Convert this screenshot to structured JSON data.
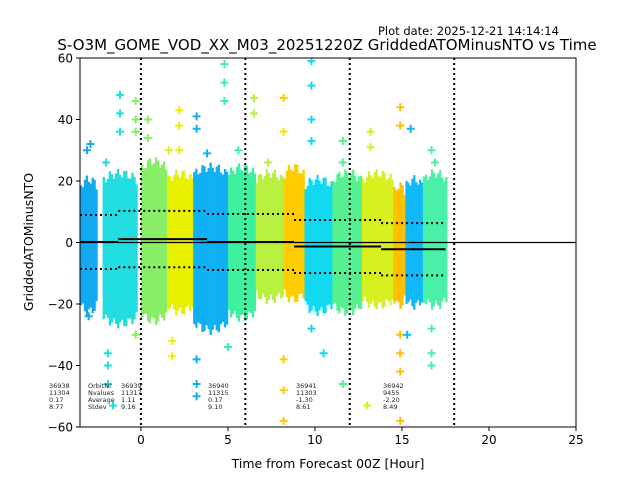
{
  "chart_data": {
    "type": "scatter",
    "title": "S-O3M_GOME_VOD_XX_M03_20251220Z GriddedATOMinusNTO vs Time",
    "plot_date": "Plot date: 2025-12-21 14:14:14",
    "xlabel": "Time from Forecast 00Z [Hour]",
    "ylabel": "GriddedATOMinusNTO",
    "xlim": [
      -3.5,
      25
    ],
    "ylim": [
      -60,
      60
    ],
    "xticks": [
      0,
      5,
      10,
      15,
      20,
      25
    ],
    "yticks": [
      -60,
      -40,
      -20,
      0,
      20,
      40,
      60
    ],
    "vertical_dotted_lines_x": [
      0,
      6,
      12,
      18
    ],
    "zero_line_y": 0,
    "stat_labels": [
      "OrbitNr",
      "Nvalues",
      "Average",
      "Stdev"
    ],
    "orbits": [
      {
        "orbit": "36938",
        "nvalues": "11304",
        "average": "0.17",
        "stdev": "8.77",
        "x_start": -3.5,
        "x_end": -1.3,
        "mean": 0.17,
        "std": 8.77
      },
      {
        "orbit": "36939",
        "nvalues": "11317",
        "average": "1.11",
        "stdev": "9.16",
        "x_start": -1.3,
        "x_end": 3.8,
        "mean": 1.11,
        "std": 9.16
      },
      {
        "orbit": "36940",
        "nvalues": "11315",
        "average": "0.17",
        "stdev": "9.10",
        "x_start": 3.8,
        "x_end": 8.8,
        "mean": 0.17,
        "std": 9.1
      },
      {
        "orbit": "36941",
        "nvalues": "11303",
        "average": "-1.30",
        "stdev": "8.61",
        "x_start": 8.8,
        "x_end": 13.8,
        "mean": -1.3,
        "std": 8.61
      },
      {
        "orbit": "36942",
        "nvalues": "9455",
        "average": "-2.20",
        "stdev": "8.49",
        "x_start": 13.8,
        "x_end": 17.5,
        "mean": -2.2,
        "std": 8.49
      }
    ],
    "strips": [
      {
        "x0": -3.5,
        "x1": -2.5,
        "ymin": -24,
        "ymax": 22,
        "color": "#11a9f0"
      },
      {
        "x0": -2.2,
        "x1": -0.2,
        "ymin": -28,
        "ymax": 24,
        "color": "#22dde0"
      },
      {
        "x0": 0.0,
        "x1": 1.5,
        "ymin": -27,
        "ymax": 28,
        "color": "#88ee66"
      },
      {
        "x0": 1.5,
        "x1": 3.0,
        "ymin": -24,
        "ymax": 24,
        "color": "#e8f000"
      },
      {
        "x0": 3.0,
        "x1": 5.0,
        "ymin": -30,
        "ymax": 26,
        "color": "#10b0f5"
      },
      {
        "x0": 5.0,
        "x1": 6.6,
        "ymin": -26,
        "ymax": 26,
        "color": "#3ef0a0"
      },
      {
        "x0": 6.6,
        "x1": 8.2,
        "ymin": -20,
        "ymax": 24,
        "color": "#b8f040"
      },
      {
        "x0": 8.2,
        "x1": 9.4,
        "ymin": -20,
        "ymax": 26,
        "color": "#ffcc00"
      },
      {
        "x0": 9.4,
        "x1": 11.0,
        "ymin": -24,
        "ymax": 22,
        "color": "#12d8f0"
      },
      {
        "x0": 11.0,
        "x1": 12.7,
        "ymin": -24,
        "ymax": 24,
        "color": "#55f090"
      },
      {
        "x0": 12.7,
        "x1": 14.5,
        "ymin": -22,
        "ymax": 24,
        "color": "#d8f020"
      },
      {
        "x0": 14.5,
        "x1": 15.2,
        "ymin": -22,
        "ymax": 20,
        "color": "#ffc000"
      },
      {
        "x0": 15.2,
        "x1": 16.2,
        "ymin": -22,
        "ymax": 22,
        "color": "#10b8f8"
      },
      {
        "x0": 16.2,
        "x1": 17.6,
        "ymin": -22,
        "ymax": 24,
        "color": "#48f0a8"
      }
    ],
    "outliers": [
      {
        "x": -3.1,
        "y": 30,
        "color": "#11a9f0"
      },
      {
        "x": -2.9,
        "y": 32,
        "color": "#11a9f0"
      },
      {
        "x": -3.0,
        "y": -24,
        "color": "#11a9f0"
      },
      {
        "x": -2.0,
        "y": 26,
        "color": "#22dde0"
      },
      {
        "x": -1.2,
        "y": 48,
        "color": "#22dde0"
      },
      {
        "x": -1.2,
        "y": 42,
        "color": "#22dde0"
      },
      {
        "x": -1.2,
        "y": 36,
        "color": "#22dde0"
      },
      {
        "x": -1.9,
        "y": -40,
        "color": "#22dde0"
      },
      {
        "x": -1.9,
        "y": -36,
        "color": "#22dde0"
      },
      {
        "x": -1.6,
        "y": -53,
        "color": "#22dde0"
      },
      {
        "x": -1.9,
        "y": -46,
        "color": "#22dde0"
      },
      {
        "x": -0.3,
        "y": 46,
        "color": "#88ee66"
      },
      {
        "x": -0.3,
        "y": 40,
        "color": "#88ee66"
      },
      {
        "x": -0.3,
        "y": 36,
        "color": "#88ee66"
      },
      {
        "x": 0.4,
        "y": 40,
        "color": "#88ee66"
      },
      {
        "x": 0.4,
        "y": 34,
        "color": "#88ee66"
      },
      {
        "x": -0.3,
        "y": -30,
        "color": "#88ee66"
      },
      {
        "x": 1.6,
        "y": 30,
        "color": "#e8f000"
      },
      {
        "x": 2.2,
        "y": 43,
        "color": "#e8f000"
      },
      {
        "x": 2.2,
        "y": 38,
        "color": "#e8f000"
      },
      {
        "x": 2.2,
        "y": 30,
        "color": "#e8f000"
      },
      {
        "x": 1.8,
        "y": -32,
        "color": "#e8f000"
      },
      {
        "x": 1.8,
        "y": -37,
        "color": "#e8f000"
      },
      {
        "x": 3.2,
        "y": 41,
        "color": "#10b0f5"
      },
      {
        "x": 3.2,
        "y": 37,
        "color": "#10b0f5"
      },
      {
        "x": 3.8,
        "y": 29,
        "color": "#10b0f5"
      },
      {
        "x": 3.2,
        "y": -38,
        "color": "#10b0f5"
      },
      {
        "x": 3.2,
        "y": -46,
        "color": "#10b0f5"
      },
      {
        "x": 3.2,
        "y": -50,
        "color": "#10b0f5"
      },
      {
        "x": 4.8,
        "y": 58,
        "color": "#3ef0a0"
      },
      {
        "x": 4.8,
        "y": 52,
        "color": "#3ef0a0"
      },
      {
        "x": 4.8,
        "y": 46,
        "color": "#3ef0a0"
      },
      {
        "x": 5.6,
        "y": 30,
        "color": "#3ef0a0"
      },
      {
        "x": 5.0,
        "y": -34,
        "color": "#3ef0a0"
      },
      {
        "x": 6.5,
        "y": 47,
        "color": "#b8f040"
      },
      {
        "x": 6.5,
        "y": 42,
        "color": "#b8f040"
      },
      {
        "x": 7.3,
        "y": 26,
        "color": "#b8f040"
      },
      {
        "x": 8.2,
        "y": 47,
        "color": "#ffcc00"
      },
      {
        "x": 8.2,
        "y": 36,
        "color": "#ffdd00"
      },
      {
        "x": 8.2,
        "y": -38,
        "color": "#ffcc00"
      },
      {
        "x": 8.2,
        "y": -48,
        "color": "#ffcc00"
      },
      {
        "x": 8.2,
        "y": -58,
        "color": "#ffcc00"
      },
      {
        "x": 9.8,
        "y": 59,
        "color": "#12d8f0"
      },
      {
        "x": 9.8,
        "y": 51,
        "color": "#12d8f0"
      },
      {
        "x": 9.8,
        "y": 40,
        "color": "#12d8f0"
      },
      {
        "x": 9.8,
        "y": 33,
        "color": "#12d8f0"
      },
      {
        "x": 10.5,
        "y": -36,
        "color": "#12d8f0"
      },
      {
        "x": 9.8,
        "y": -28,
        "color": "#12d8f0"
      },
      {
        "x": 11.6,
        "y": 33,
        "color": "#55f090"
      },
      {
        "x": 11.6,
        "y": 26,
        "color": "#55f090"
      },
      {
        "x": 11.6,
        "y": -46,
        "color": "#55f090"
      },
      {
        "x": 13.2,
        "y": 36,
        "color": "#d8f020"
      },
      {
        "x": 13.2,
        "y": 31,
        "color": "#d8f020"
      },
      {
        "x": 13.0,
        "y": -53,
        "color": "#d8f020"
      },
      {
        "x": 14.9,
        "y": 44,
        "color": "#ffc000"
      },
      {
        "x": 14.9,
        "y": 38,
        "color": "#ffc000"
      },
      {
        "x": 14.9,
        "y": -30,
        "color": "#ffc000"
      },
      {
        "x": 14.9,
        "y": -36,
        "color": "#ffc000"
      },
      {
        "x": 14.9,
        "y": -42,
        "color": "#ffc000"
      },
      {
        "x": 14.9,
        "y": -58,
        "color": "#ffc000"
      },
      {
        "x": 15.5,
        "y": 37,
        "color": "#10b8f8"
      },
      {
        "x": 15.3,
        "y": -30,
        "color": "#10b8f8"
      },
      {
        "x": 16.7,
        "y": 30,
        "color": "#48f0a8"
      },
      {
        "x": 16.9,
        "y": 26,
        "color": "#48f0a8"
      },
      {
        "x": 16.7,
        "y": -36,
        "color": "#48f0a8"
      },
      {
        "x": 16.7,
        "y": -40,
        "color": "#48f0a8"
      },
      {
        "x": 16.7,
        "y": -28,
        "color": "#48f0a8"
      }
    ]
  }
}
